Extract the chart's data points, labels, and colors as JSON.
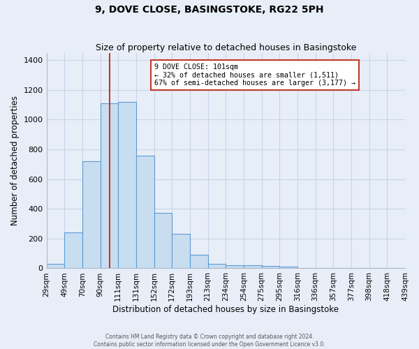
{
  "title1": "9, DOVE CLOSE, BASINGSTOKE, RG22 5PH",
  "title2": "Size of property relative to detached houses in Basingstoke",
  "xlabel": "Distribution of detached houses by size in Basingstoke",
  "ylabel": "Number of detached properties",
  "footer1": "Contains HM Land Registry data © Crown copyright and database right 2024.",
  "footer2": "Contains public sector information licensed under the Open Government Licence v3.0.",
  "bin_labels": [
    "29sqm",
    "49sqm",
    "70sqm",
    "90sqm",
    "111sqm",
    "131sqm",
    "152sqm",
    "172sqm",
    "193sqm",
    "213sqm",
    "234sqm",
    "254sqm",
    "275sqm",
    "295sqm",
    "316sqm",
    "336sqm",
    "357sqm",
    "377sqm",
    "398sqm",
    "418sqm",
    "439sqm"
  ],
  "bar_values": [
    30,
    240,
    720,
    1110,
    1120,
    760,
    375,
    230,
    90,
    30,
    20,
    20,
    15,
    10,
    0,
    0,
    0,
    0,
    0,
    0
  ],
  "bar_color": "#c9ddf0",
  "bar_edge_color": "#5b9bd5",
  "red_line_bin": 3.9,
  "annotation_title": "9 DOVE CLOSE: 101sqm",
  "annotation_line1": "← 32% of detached houses are smaller (1,511)",
  "annotation_line2": "67% of semi-detached houses are larger (3,177) →",
  "annotation_box_color": "white",
  "annotation_box_edge": "#c0392b",
  "ylim": [
    0,
    1450
  ],
  "yticks": [
    0,
    200,
    400,
    600,
    800,
    1000,
    1200,
    1400
  ],
  "grid_color": "#c8d4e8",
  "background_color": "#e8eef8"
}
